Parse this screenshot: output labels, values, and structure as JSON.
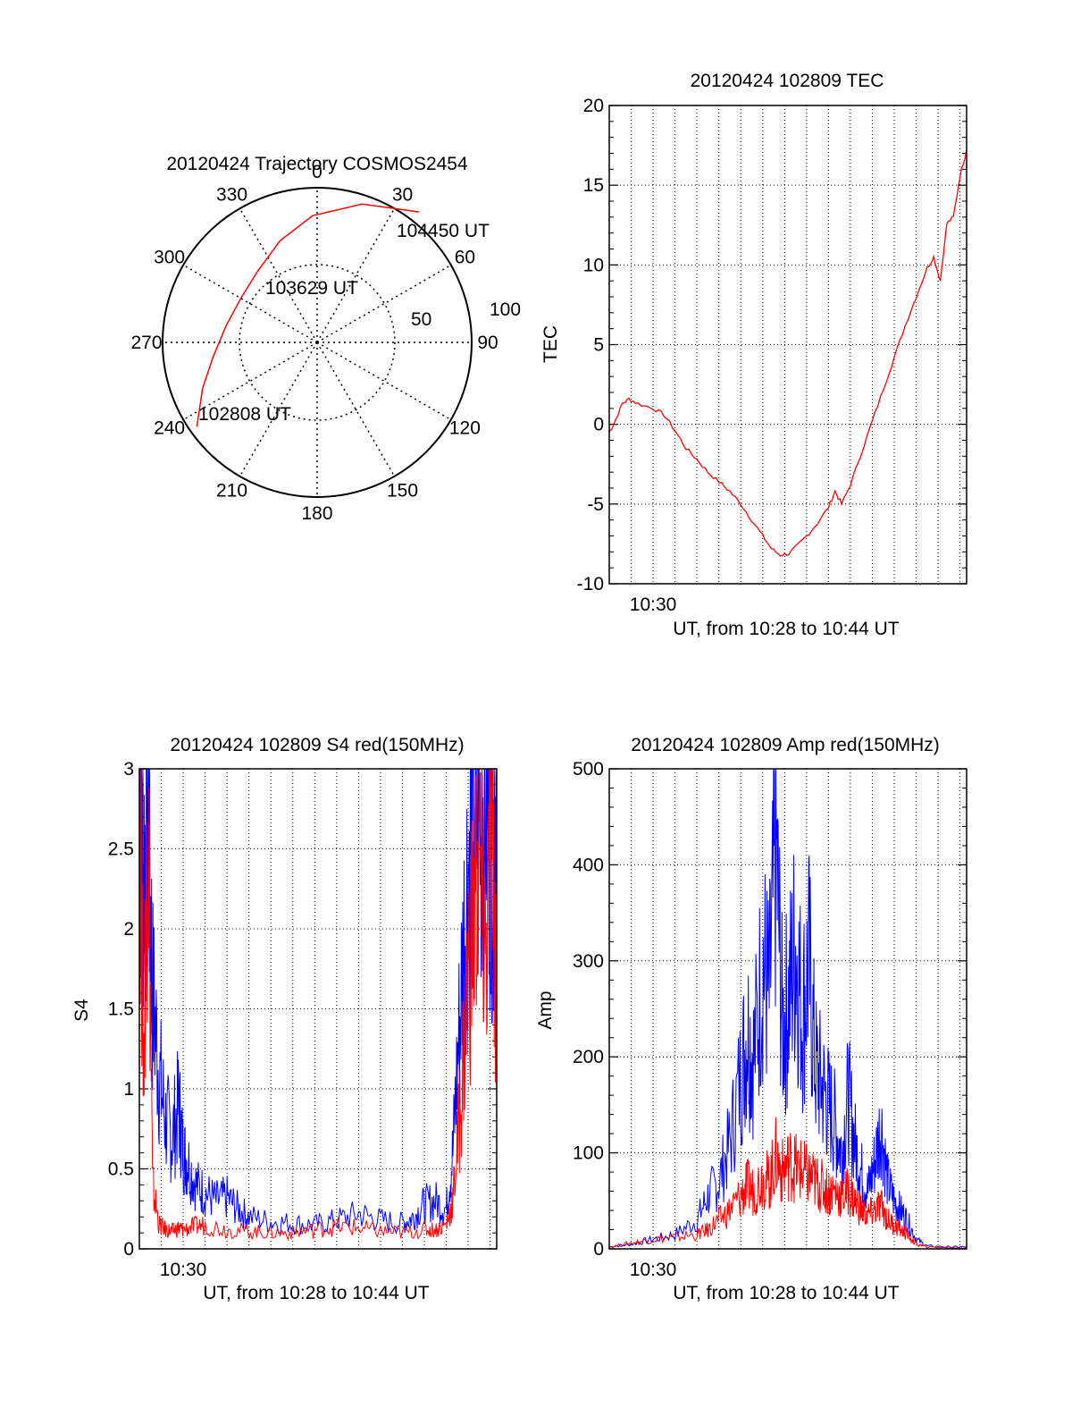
{
  "chart_data": [
    {
      "type": "polar",
      "title": "20120424 Trajectory COSMOS2454",
      "azimuth_labels": [
        "0",
        "30",
        "60",
        "90",
        "120",
        "150",
        "180",
        "210",
        "240",
        "270",
        "300",
        "330"
      ],
      "elevation_rings": [
        100,
        50
      ],
      "ring_labels": [
        "100",
        "50"
      ],
      "track": {
        "color": "#ff0000",
        "points": [
          {
            "azimuth": 235,
            "zenith": 95
          },
          {
            "azimuth": 248,
            "zenith": 80
          },
          {
            "azimuth": 262,
            "zenith": 68
          },
          {
            "azimuth": 280,
            "zenith": 60
          },
          {
            "azimuth": 300,
            "zenith": 57
          },
          {
            "azimuth": 320,
            "zenith": 60
          },
          {
            "azimuth": 340,
            "zenith": 70
          },
          {
            "azimuth": 358,
            "zenith": 82
          },
          {
            "azimuth": 18,
            "zenith": 94
          },
          {
            "azimuth": 30,
            "zenith": 100
          },
          {
            "azimuth": 38,
            "zenith": 107
          }
        ]
      },
      "annotations": [
        {
          "text": "104450 UT"
        },
        {
          "text": "103629 UT"
        },
        {
          "text": "102808 UT"
        }
      ]
    },
    {
      "type": "line",
      "title": "20120424 102809 TEC",
      "xlabel": "UT, from 10:28 to 10:44 UT",
      "ylabel": "TEC",
      "xlim": [
        0,
        16.3
      ],
      "ylim": [
        -10,
        20
      ],
      "yticks": [
        -10,
        -5,
        0,
        5,
        10,
        15,
        20
      ],
      "ytick_labels": [
        "-10",
        "-5",
        "0",
        "5",
        "10",
        "15",
        "20"
      ],
      "xtick_labels": [
        {
          "x": 2.0,
          "label": "10:30"
        }
      ],
      "series": [
        {
          "color": "#ff0000",
          "x": [
            0.0,
            0.2,
            0.6,
            0.9,
            1.3,
            2.0,
            2.5,
            3.0,
            3.5,
            4.0,
            4.5,
            5.0,
            5.5,
            6.0,
            6.5,
            7.0,
            7.4,
            7.8,
            8.2,
            8.6,
            9.0,
            9.5,
            10.0,
            10.3,
            10.6,
            11.0,
            11.5,
            12.0,
            12.5,
            13.0,
            13.5,
            14.0,
            14.5,
            14.8,
            15.1,
            15.4,
            15.7,
            16.0,
            16.3
          ],
          "y": [
            -0.5,
            0.0,
            1.3,
            1.6,
            1.3,
            1.0,
            0.6,
            -0.4,
            -1.5,
            -2.2,
            -3.0,
            -3.6,
            -4.2,
            -5.0,
            -6.0,
            -7.0,
            -7.8,
            -8.2,
            -8.1,
            -7.6,
            -7.0,
            -6.2,
            -5.2,
            -4.2,
            -5.0,
            -3.8,
            -1.8,
            0.2,
            2.2,
            4.2,
            6.2,
            8.0,
            9.8,
            10.5,
            9.0,
            12.6,
            13.0,
            15.6,
            17.2
          ]
        }
      ]
    },
    {
      "type": "line",
      "title": "20120424 102809 S4 red(150MHz)",
      "xlabel": "UT, from 10:28 to 10:44 UT",
      "ylabel": "S4",
      "xlim": [
        0,
        16.3
      ],
      "ylim": [
        0,
        3
      ],
      "yticks": [
        0,
        0.5,
        1,
        1.5,
        2,
        2.5,
        3
      ],
      "ytick_labels": [
        "0",
        "0.5",
        "1",
        "1.5",
        "2",
        "2.5",
        "3"
      ],
      "xtick_labels": [
        {
          "x": 2.0,
          "label": "10:30"
        }
      ],
      "series": [
        {
          "color": "#0000ff",
          "x": [
            0.0,
            0.2,
            0.4,
            0.6,
            0.9,
            1.2,
            1.5,
            1.8,
            2.0,
            2.2,
            2.6,
            3.0,
            3.5,
            4.0,
            4.5,
            5.0,
            6.0,
            7.0,
            8.0,
            9.0,
            10.0,
            11.0,
            12.0,
            12.5,
            13.0,
            13.5,
            14.0,
            14.3,
            14.6,
            14.9,
            15.2,
            15.5,
            15.8,
            16.1,
            16.3
          ],
          "y": [
            3.0,
            2.4,
            2.8,
            1.6,
            1.1,
            0.8,
            0.7,
            0.9,
            0.6,
            0.55,
            0.4,
            0.35,
            0.3,
            0.32,
            0.25,
            0.2,
            0.17,
            0.16,
            0.15,
            0.18,
            0.22,
            0.18,
            0.16,
            0.2,
            0.28,
            0.3,
            0.25,
            0.6,
            1.4,
            2.2,
            2.8,
            2.6,
            2.9,
            2.5,
            3.0
          ]
        },
        {
          "color": "#ff0000",
          "x": [
            0.0,
            0.2,
            0.4,
            0.6,
            0.9,
            1.2,
            1.5,
            1.8,
            2.0,
            2.5,
            3.0,
            4.0,
            5.0,
            6.0,
            7.0,
            8.0,
            9.0,
            10.0,
            11.0,
            12.0,
            13.0,
            13.5,
            14.0,
            14.3,
            14.6,
            14.9,
            15.2,
            15.5,
            15.8,
            16.1,
            16.3
          ],
          "y": [
            3.0,
            1.2,
            2.9,
            0.4,
            0.15,
            0.12,
            0.11,
            0.13,
            0.12,
            0.14,
            0.15,
            0.12,
            0.11,
            0.1,
            0.1,
            0.12,
            0.14,
            0.13,
            0.11,
            0.1,
            0.12,
            0.12,
            0.15,
            0.3,
            0.8,
            1.5,
            2.0,
            2.4,
            1.8,
            2.6,
            1.5
          ]
        }
      ]
    },
    {
      "type": "line",
      "title": "20120424 102809 Amp red(150MHz)",
      "xlabel": "UT, from 10:28 to 10:44 UT",
      "ylabel": "Amp",
      "xlim": [
        0,
        16.3
      ],
      "ylim": [
        0,
        500
      ],
      "yticks": [
        0,
        100,
        200,
        300,
        400,
        500
      ],
      "ytick_labels": [
        "0",
        "100",
        "200",
        "300",
        "400",
        "500"
      ],
      "xtick_labels": [
        {
          "x": 2.0,
          "label": "10:30"
        }
      ],
      "series": [
        {
          "color": "#0000ff",
          "x": [
            0.0,
            1.0,
            2.0,
            3.0,
            4.0,
            4.5,
            5.0,
            5.5,
            6.0,
            6.3,
            6.6,
            7.0,
            7.3,
            7.6,
            7.9,
            8.2,
            8.5,
            8.8,
            9.1,
            9.4,
            9.7,
            10.0,
            10.3,
            10.6,
            10.9,
            11.2,
            11.5,
            11.8,
            12.1,
            12.4,
            12.7,
            13.0,
            13.3,
            13.6,
            14.0,
            14.5,
            15.5,
            16.3
          ],
          "y": [
            2,
            5,
            10,
            15,
            30,
            55,
            70,
            110,
            180,
            230,
            200,
            300,
            260,
            420,
            230,
            260,
            320,
            240,
            300,
            190,
            170,
            150,
            130,
            100,
            160,
            110,
            80,
            60,
            90,
            130,
            70,
            50,
            40,
            30,
            10,
            3,
            2,
            2
          ]
        },
        {
          "color": "#ff0000",
          "x": [
            0.0,
            1.0,
            2.0,
            3.0,
            4.0,
            4.5,
            5.0,
            5.5,
            6.0,
            6.3,
            6.6,
            7.0,
            7.3,
            7.6,
            7.9,
            8.2,
            8.5,
            8.8,
            9.1,
            9.4,
            9.7,
            10.0,
            10.3,
            10.6,
            10.9,
            11.2,
            11.5,
            11.8,
            12.1,
            12.4,
            12.7,
            13.0,
            13.3,
            13.6,
            14.0,
            14.5,
            15.5,
            16.3
          ],
          "y": [
            2,
            6,
            10,
            12,
            15,
            20,
            30,
            40,
            55,
            65,
            60,
            75,
            70,
            95,
            80,
            90,
            85,
            80,
            75,
            70,
            65,
            60,
            60,
            55,
            60,
            50,
            40,
            35,
            40,
            45,
            30,
            25,
            20,
            15,
            5,
            2,
            1,
            1
          ]
        }
      ]
    }
  ]
}
